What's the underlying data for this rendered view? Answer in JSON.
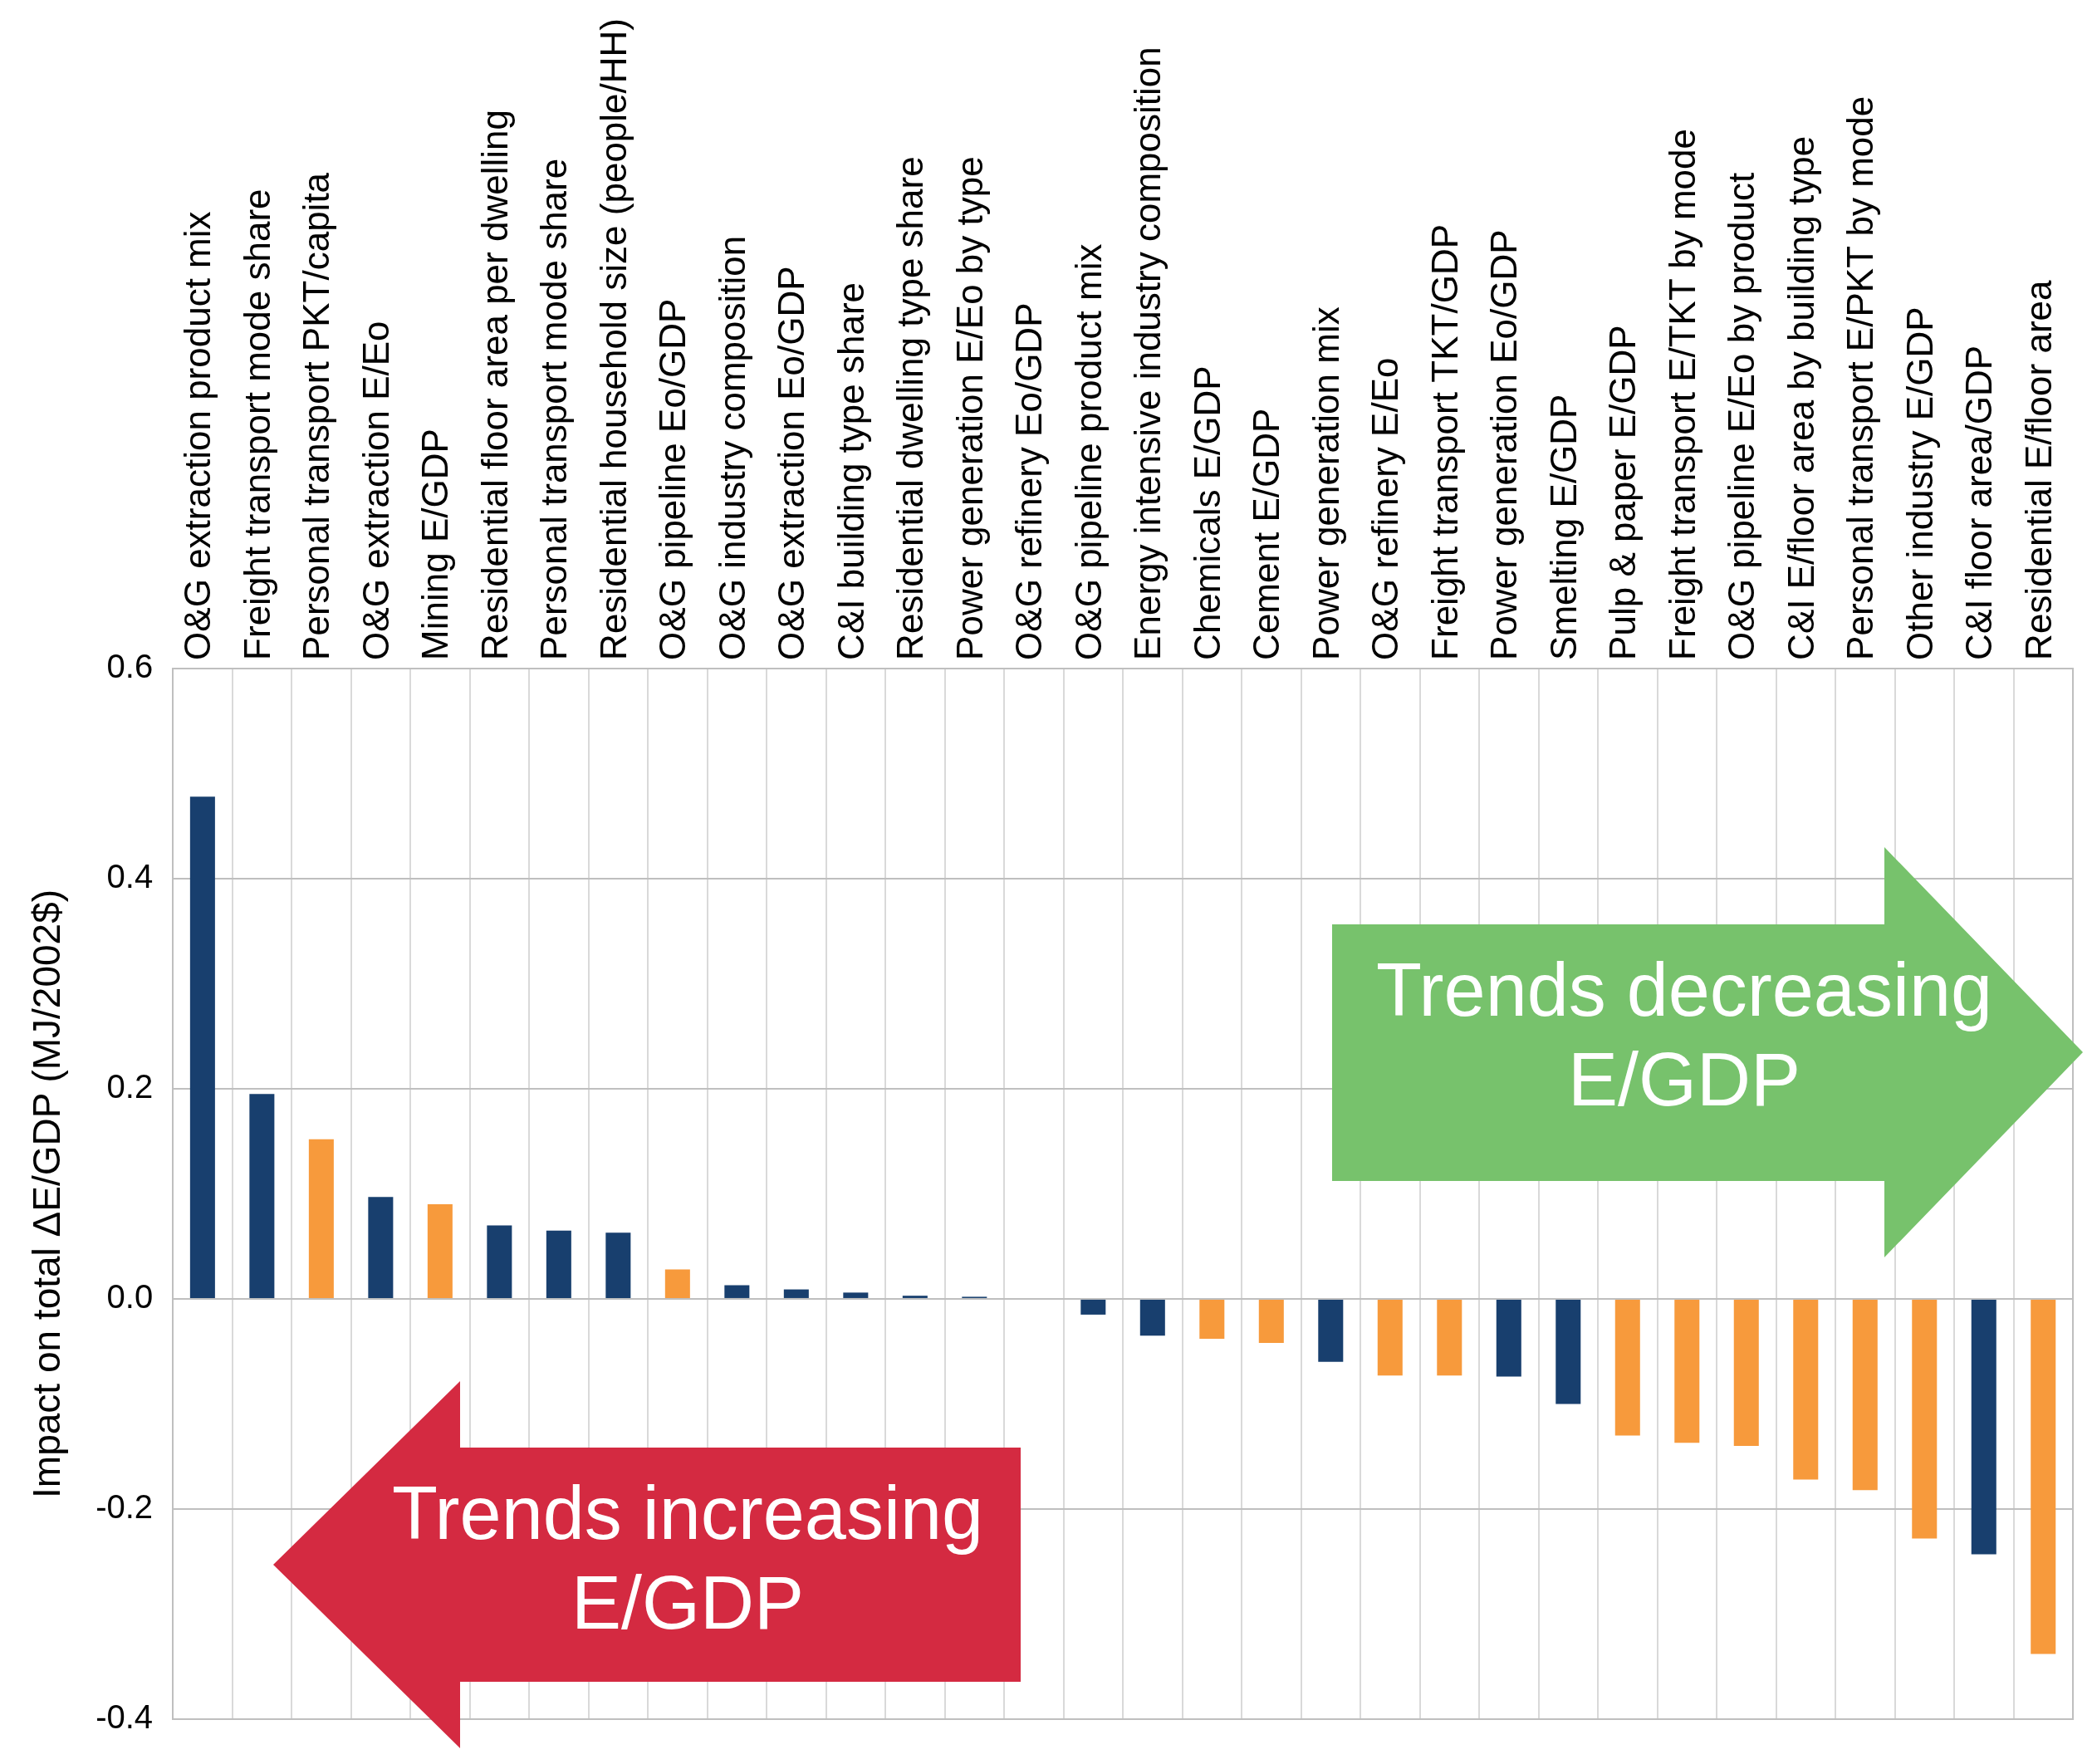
{
  "chart_data": {
    "type": "bar",
    "ylabel": "Impact on total ΔE/GDP (MJ/2002$)",
    "categories": [
      "O&G extraction product mix",
      "Freight transport mode share",
      "Personal transport PKT/capita",
      "O&G extraction E/Eo",
      "Mining E/GDP",
      "Residential floor area per dwelling",
      "Personal transport mode share",
      "Residential household size (people/HH)",
      "O&G pipeline Eo/GDP",
      "O&G industry composition",
      "O&G extraction Eo/GDP",
      "C&I building type share",
      "Residential dwelling type share",
      "Power generation E/Eo by type",
      "O&G refinery Eo/GDP",
      "O&G pipeline product mix",
      "Energy intensive industry composition",
      "Chemicals E/GDP",
      "Cement E/GDP",
      "Power generation mix",
      "O&G refinery E/Eo",
      "Freight transport TKT/GDP",
      "Power generation Eo/GDP",
      "Smelting E/GDP",
      "Pulp & paper E/GDP",
      "Freight transport E/TKT by mode",
      "O&G pipeline E/Eo by product",
      "C&I E/floor area by building type",
      "Personal transport E/PKT by mode",
      "Other industry E/GDP",
      "C&I floor area/GDP",
      "Residential E/floor area"
    ],
    "values": [
      0.478,
      0.195,
      0.152,
      0.097,
      0.09,
      0.07,
      0.065,
      0.063,
      0.028,
      0.013,
      0.009,
      0.006,
      0.003,
      0.002,
      0,
      -0.015,
      -0.035,
      -0.038,
      -0.042,
      -0.06,
      -0.073,
      -0.073,
      -0.074,
      -0.1,
      -0.13,
      -0.137,
      -0.14,
      -0.172,
      -0.182,
      -0.228,
      -0.243,
      -0.338
    ],
    "colors": [
      "#183f6e",
      "#183f6e",
      "#f79a3c",
      "#183f6e",
      "#f79a3c",
      "#183f6e",
      "#183f6e",
      "#183f6e",
      "#f79a3c",
      "#183f6e",
      "#183f6e",
      "#183f6e",
      "#183f6e",
      "#183f6e",
      "#183f6e",
      "#183f6e",
      "#183f6e",
      "#f79a3c",
      "#f79a3c",
      "#183f6e",
      "#f79a3c",
      "#f79a3c",
      "#183f6e",
      "#183f6e",
      "#f79a3c",
      "#f79a3c",
      "#f79a3c",
      "#f79a3c",
      "#f79a3c",
      "#f79a3c",
      "#183f6e",
      "#f79a3c"
    ],
    "ylim": [
      -0.4,
      0.6
    ],
    "yticks": [
      -0.4,
      -0.2,
      {
        "value": 0,
        "label": "0.0"
      },
      0.2,
      0.4,
      0.6
    ],
    "grid": true,
    "annotations": [
      "Trends decreasing E/GDP",
      "Trends increasing E/GDP"
    ]
  }
}
